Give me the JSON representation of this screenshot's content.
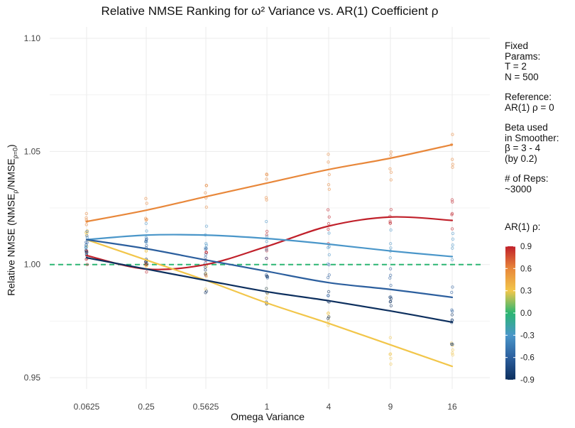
{
  "chart_data": {
    "type": "line",
    "title": "Relative NMSE Ranking for ω² Variance vs. AR(1) Coefficient ρ",
    "xlabel": "Omega Variance",
    "ylabel": "Relative NMSE (NMSEρ/NMSEρ=0)",
    "ylabel_parts": [
      "Relative NMSE (NMSE",
      "ρ",
      "/NMSE",
      "ρ=0",
      ")"
    ],
    "categories": [
      "0.0625",
      "0.25",
      "0.5625",
      "1",
      "4",
      "9",
      "16"
    ],
    "ylim": [
      0.945,
      1.105
    ],
    "y_ticks": [
      0.95,
      1.0,
      1.05,
      1.1
    ],
    "y_tick_labels": [
      "0.95",
      "1.00",
      "1.05",
      "1.10"
    ],
    "reference_line": {
      "y": 1.0,
      "color": "#2bb673",
      "style": "dashed"
    },
    "grid": true,
    "series": [
      {
        "rho": 0.9,
        "color": "#c0202a",
        "values": [
          1.004,
          0.998,
          1.0,
          1.008,
          1.017,
          1.021,
          1.0195
        ]
      },
      {
        "rho": 0.6,
        "color": "#e8873a",
        "values": [
          1.019,
          1.024,
          1.03,
          1.036,
          1.042,
          1.047,
          1.053
        ]
      },
      {
        "rho": 0.3,
        "color": "#f2c64a",
        "values": [
          1.011,
          1.002,
          0.993,
          0.983,
          0.974,
          0.9645,
          0.955
        ]
      },
      {
        "rho": -0.3,
        "color": "#4a96c9",
        "values": [
          1.011,
          1.013,
          1.013,
          1.0115,
          1.009,
          1.006,
          1.0035
        ]
      },
      {
        "rho": -0.6,
        "color": "#2c5f9e",
        "values": [
          1.011,
          1.007,
          1.002,
          0.997,
          0.992,
          0.989,
          0.9855
        ]
      },
      {
        "rho": -0.9,
        "color": "#0d2f5e",
        "values": [
          1.003,
          0.998,
          0.993,
          0.988,
          0.984,
          0.9795,
          0.9745
        ]
      }
    ],
    "legend": {
      "position": "right",
      "blocks": [
        [
          "Fixed",
          "Params:",
          "T = 2",
          "N = 500"
        ],
        [
          "Reference:",
          "AR(1) ρ = 0"
        ],
        [
          "Beta used",
          "in Smoother:",
          "β = 3 - 4",
          "(by 0.2)"
        ],
        [
          "# of Reps:",
          "~3000"
        ]
      ],
      "colorbar_title": "AR(1) ρ:",
      "colorbar_ticks": [
        0.9,
        0.6,
        0.3,
        0.0,
        -0.3,
        -0.6,
        -0.9
      ],
      "colorbar_tick_labels": [
        "0.9",
        "0.6",
        "0.3",
        "0.0",
        "-0.3",
        "-0.6",
        "-0.9"
      ],
      "colorbar_colors": [
        "#c0202a",
        "#e8873a",
        "#f2c64a",
        "#2bb673",
        "#4a96c9",
        "#2c5f9e",
        "#0d2f5e"
      ]
    }
  }
}
